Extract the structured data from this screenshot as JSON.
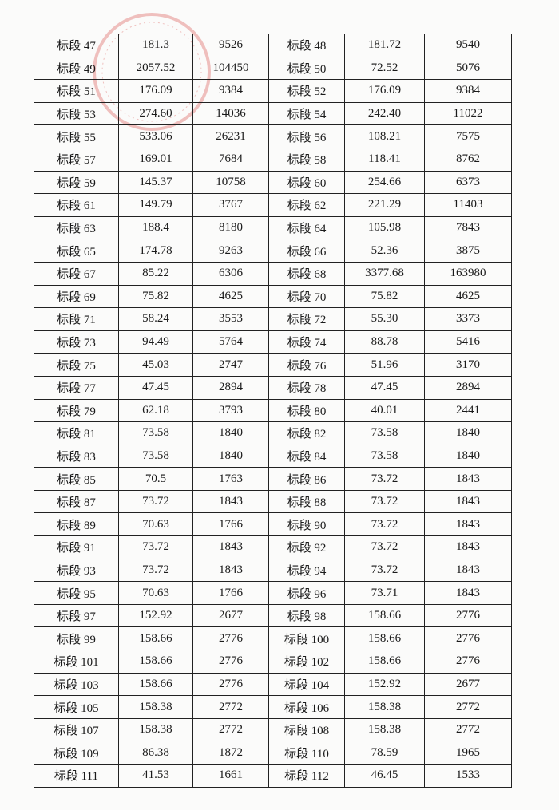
{
  "stamp": {
    "color": "#d9534f"
  },
  "rows": [
    [
      "标段 47",
      "181.3",
      "9526",
      "标段 48",
      "181.72",
      "9540"
    ],
    [
      "标段 49",
      "2057.52",
      "104450",
      "标段 50",
      "72.52",
      "5076"
    ],
    [
      "标段 51",
      "176.09",
      "9384",
      "标段 52",
      "176.09",
      "9384"
    ],
    [
      "标段 53",
      "274.60",
      "14036",
      "标段 54",
      "242.40",
      "11022"
    ],
    [
      "标段 55",
      "533.06",
      "26231",
      "标段 56",
      "108.21",
      "7575"
    ],
    [
      "标段 57",
      "169.01",
      "7684",
      "标段 58",
      "118.41",
      "8762"
    ],
    [
      "标段 59",
      "145.37",
      "10758",
      "标段 60",
      "254.66",
      "6373"
    ],
    [
      "标段 61",
      "149.79",
      "3767",
      "标段 62",
      "221.29",
      "11403"
    ],
    [
      "标段 63",
      "188.4",
      "8180",
      "标段 64",
      "105.98",
      "7843"
    ],
    [
      "标段 65",
      "174.78",
      "9263",
      "标段 66",
      "52.36",
      "3875"
    ],
    [
      "标段 67",
      "85.22",
      "6306",
      "标段 68",
      "3377.68",
      "163980"
    ],
    [
      "标段 69",
      "75.82",
      "4625",
      "标段 70",
      "75.82",
      "4625"
    ],
    [
      "标段 71",
      "58.24",
      "3553",
      "标段 72",
      "55.30",
      "3373"
    ],
    [
      "标段 73",
      "94.49",
      "5764",
      "标段 74",
      "88.78",
      "5416"
    ],
    [
      "标段 75",
      "45.03",
      "2747",
      "标段 76",
      "51.96",
      "3170"
    ],
    [
      "标段 77",
      "47.45",
      "2894",
      "标段 78",
      "47.45",
      "2894"
    ],
    [
      "标段 79",
      "62.18",
      "3793",
      "标段 80",
      "40.01",
      "2441"
    ],
    [
      "标段 81",
      "73.58",
      "1840",
      "标段 82",
      "73.58",
      "1840"
    ],
    [
      "标段 83",
      "73.58",
      "1840",
      "标段 84",
      "73.58",
      "1840"
    ],
    [
      "标段 85",
      "70.5",
      "1763",
      "标段 86",
      "73.72",
      "1843"
    ],
    [
      "标段 87",
      "73.72",
      "1843",
      "标段 88",
      "73.72",
      "1843"
    ],
    [
      "标段 89",
      "70.63",
      "1766",
      "标段 90",
      "73.72",
      "1843"
    ],
    [
      "标段 91",
      "73.72",
      "1843",
      "标段 92",
      "73.72",
      "1843"
    ],
    [
      "标段 93",
      "73.72",
      "1843",
      "标段 94",
      "73.72",
      "1843"
    ],
    [
      "标段 95",
      "70.63",
      "1766",
      "标段 96",
      "73.71",
      "1843"
    ],
    [
      "标段 97",
      "152.92",
      "2677",
      "标段 98",
      "158.66",
      "2776"
    ],
    [
      "标段 99",
      "158.66",
      "2776",
      "标段 100",
      "158.66",
      "2776"
    ],
    [
      "标段 101",
      "158.66",
      "2776",
      "标段 102",
      "158.66",
      "2776"
    ],
    [
      "标段 103",
      "158.66",
      "2776",
      "标段 104",
      "152.92",
      "2677"
    ],
    [
      "标段 105",
      "158.38",
      "2772",
      "标段 106",
      "158.38",
      "2772"
    ],
    [
      "标段 107",
      "158.38",
      "2772",
      "标段 108",
      "158.38",
      "2772"
    ],
    [
      "标段 109",
      "86.38",
      "1872",
      "标段 110",
      "78.59",
      "1965"
    ],
    [
      "标段 111",
      "41.53",
      "1661",
      "标段 112",
      "46.45",
      "1533"
    ]
  ]
}
